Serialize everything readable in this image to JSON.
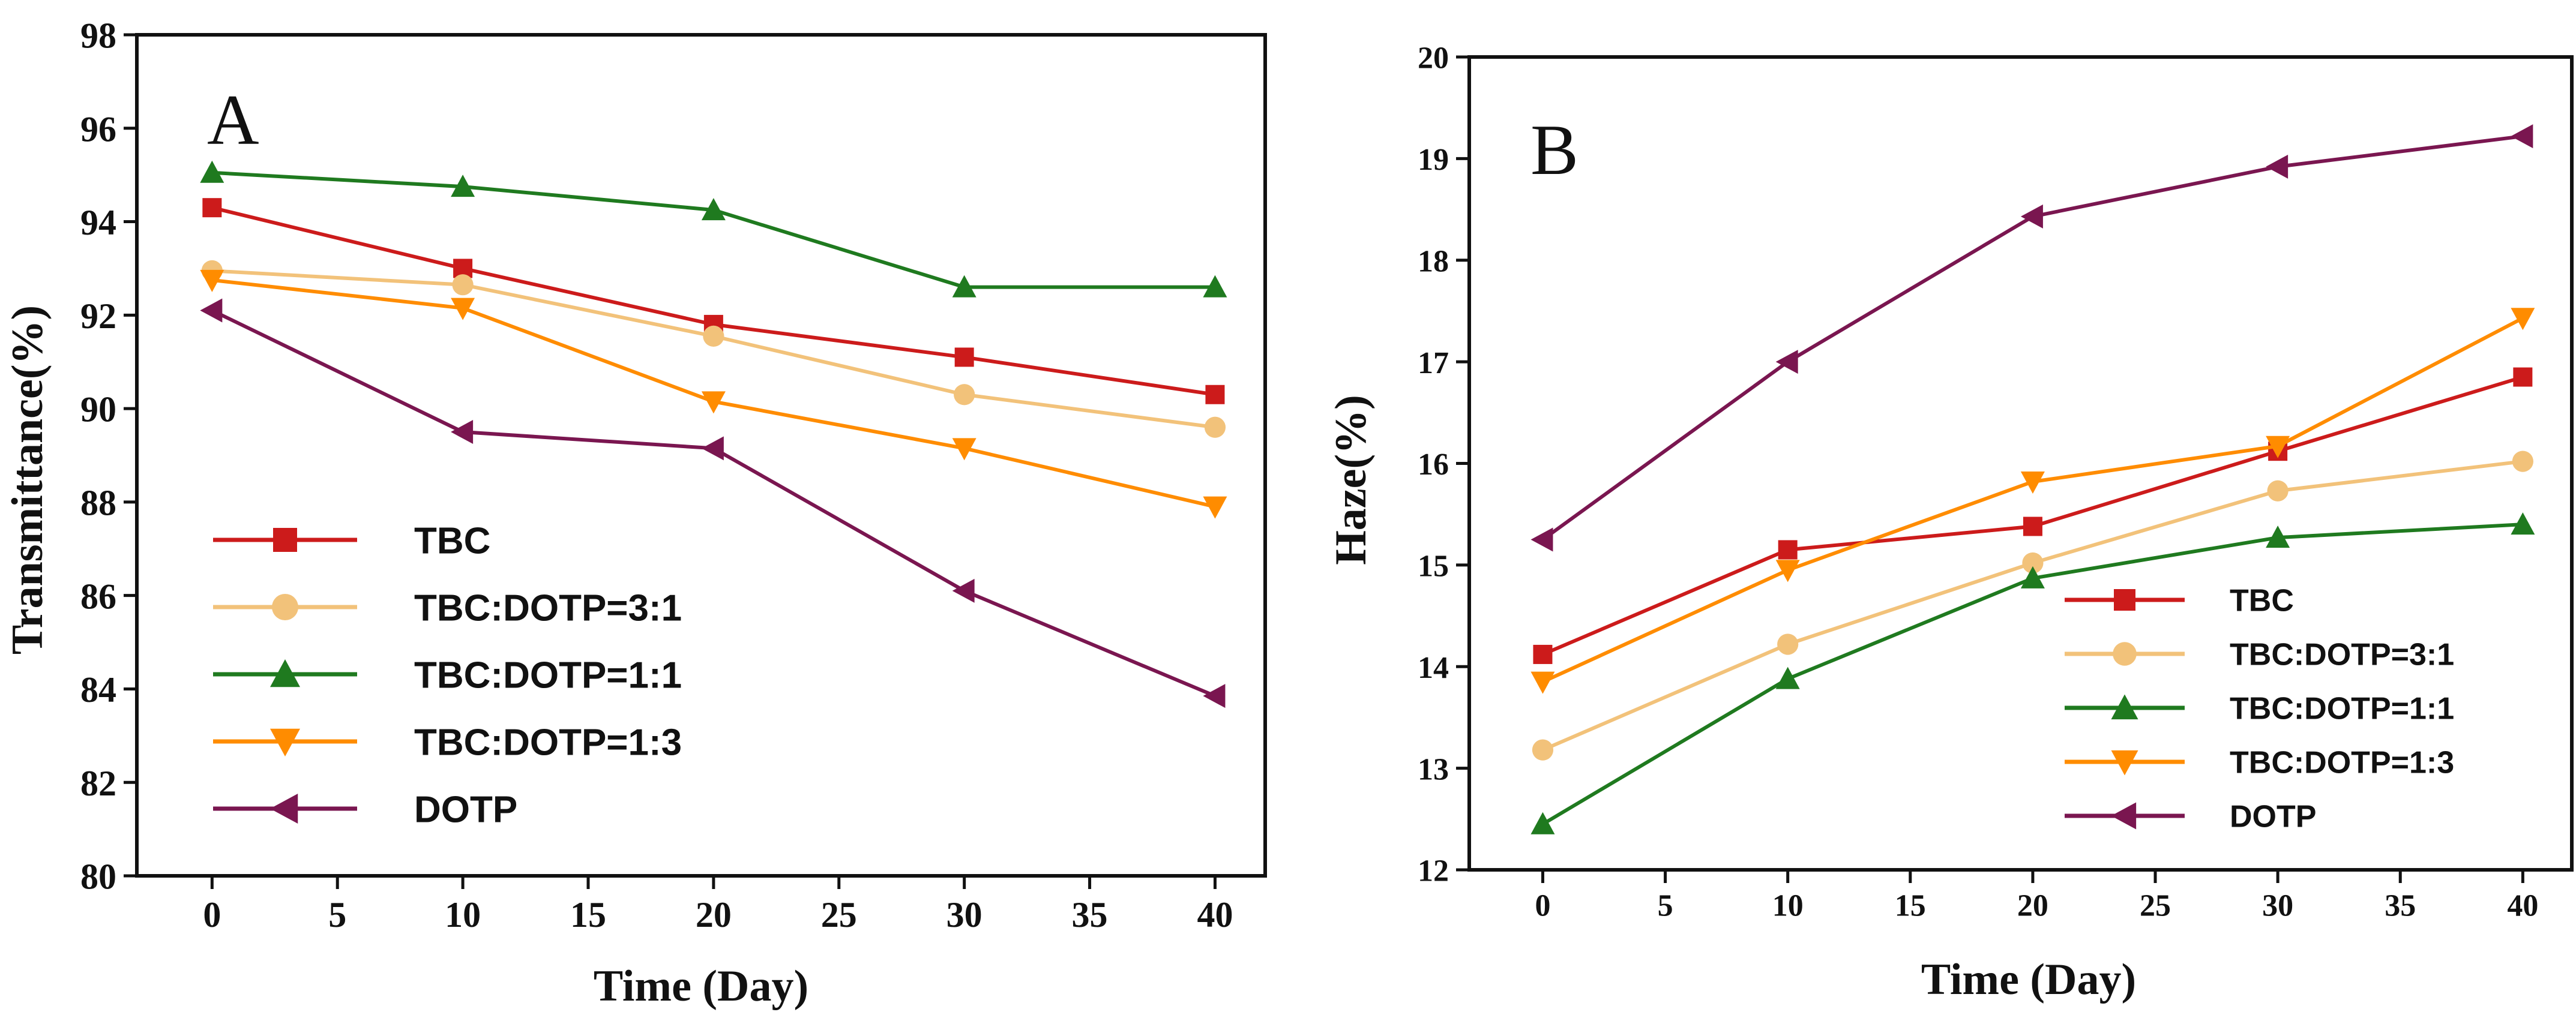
{
  "chart_data": [
    {
      "type": "line",
      "panel_label": "A",
      "title": "",
      "xlabel": "Time (Day)",
      "ylabel": "Transmittance(%)",
      "xlim": [
        -3,
        42
      ],
      "ylim": [
        80,
        98
      ],
      "x_ticks": [
        0,
        5,
        10,
        15,
        20,
        25,
        30,
        35,
        40
      ],
      "y_ticks": [
        80,
        82,
        84,
        86,
        88,
        90,
        92,
        94,
        96,
        98
      ],
      "x": [
        0,
        10,
        20,
        30,
        40
      ],
      "legend_position": "bottom-left",
      "series": [
        {
          "name": "TBC",
          "color": "#cc1b1b",
          "marker": "square",
          "values": [
            94.3,
            93.0,
            91.8,
            91.1,
            90.3
          ]
        },
        {
          "name": "TBC:DOTP=3:1",
          "color": "#f2c27a",
          "marker": "circle",
          "values": [
            92.95,
            92.65,
            91.55,
            90.3,
            89.6
          ]
        },
        {
          "name": "TBC:DOTP=1:1",
          "color": "#1f7a1f",
          "marker": "triangle-up",
          "values": [
            95.05,
            94.75,
            94.25,
            92.6,
            92.6
          ]
        },
        {
          "name": "TBC:DOTP=1:3",
          "color": "#ff8c00",
          "marker": "triangle-down",
          "values": [
            92.75,
            92.15,
            90.15,
            89.15,
            87.9
          ]
        },
        {
          "name": "DOTP",
          "color": "#7a1650",
          "marker": "triangle-left",
          "values": [
            92.1,
            89.5,
            89.15,
            86.1,
            83.85
          ]
        }
      ]
    },
    {
      "type": "line",
      "panel_label": "B",
      "title": "",
      "xlabel": "Time (Day)",
      "ylabel": "Haze(%)",
      "xlim": [
        -3,
        42
      ],
      "ylim": [
        12,
        20
      ],
      "x_ticks": [
        0,
        5,
        10,
        15,
        20,
        25,
        30,
        35,
        40
      ],
      "y_ticks": [
        12,
        13,
        14,
        15,
        16,
        17,
        18,
        19,
        20
      ],
      "x": [
        0,
        10,
        20,
        30,
        40
      ],
      "legend_position": "bottom-right",
      "series": [
        {
          "name": "TBC",
          "color": "#cc1b1b",
          "marker": "square",
          "values": [
            14.12,
            15.15,
            15.38,
            16.12,
            16.85
          ]
        },
        {
          "name": "TBC:DOTP=3:1",
          "color": "#f2c27a",
          "marker": "circle",
          "values": [
            13.18,
            14.22,
            15.02,
            15.73,
            16.02
          ]
        },
        {
          "name": "TBC:DOTP=1:1",
          "color": "#1f7a1f",
          "marker": "triangle-up",
          "values": [
            12.45,
            13.88,
            14.87,
            15.27,
            15.4
          ]
        },
        {
          "name": "TBC:DOTP=1:3",
          "color": "#ff8c00",
          "marker": "triangle-down",
          "values": [
            13.85,
            14.95,
            15.82,
            16.17,
            17.43
          ]
        },
        {
          "name": "DOTP",
          "color": "#7a1650",
          "marker": "triangle-left",
          "values": [
            15.25,
            17.0,
            18.43,
            18.92,
            19.22
          ]
        }
      ]
    }
  ]
}
